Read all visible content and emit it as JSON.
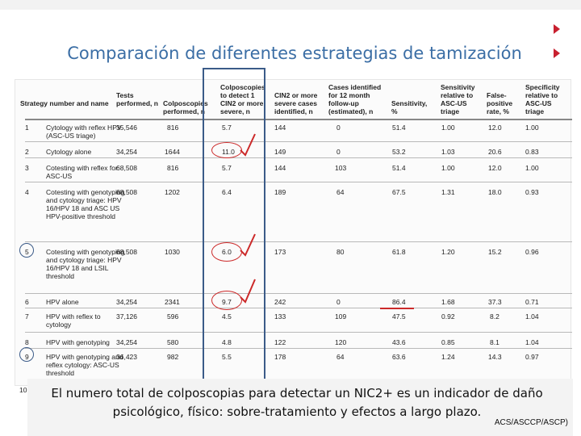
{
  "slide": {
    "title": "Comparación de diferentes estrategias de tamización",
    "caption": "El numero total de colposcopias para detectar un NIC2+ es un indicador de daño psicológico, físico: sobre-tratamiento y efectos a largo plazo.",
    "citation": "ACS/ASCCP/ASCP)"
  },
  "table": {
    "headers": [
      "Strategy number and name",
      "Tests performed, n",
      "Colposcopies performed, n",
      "Colposcopies to detect 1 CIN2 or more severe, n",
      "CIN2 or more severe cases identified, n",
      "Cases identified for 12 month follow-up (estimated), n",
      "Sensitivity, %",
      "Sensitivity relative to ASC-US triage",
      "False-positive rate, %",
      "Specificity relative to ASC-US triage"
    ],
    "rows": [
      {
        "num": "1",
        "name": "Cytology with reflex HPV (ASC-US triage)",
        "tests": "35,546",
        "colpo": "816",
        "per_cin2": "5.7",
        "cin2": "144",
        "followup": "0",
        "sens": "51.4",
        "rel_sens": "1.00",
        "fpr": "12.0",
        "rel_spec": "1.00"
      },
      {
        "num": "2",
        "name": "Cytology alone",
        "tests": "34,254",
        "colpo": "1644",
        "per_cin2": "11.0",
        "cin2": "149",
        "followup": "0",
        "sens": "53.2",
        "rel_sens": "1.03",
        "fpr": "20.6",
        "rel_spec": "0.83"
      },
      {
        "num": "3",
        "name": "Cotesting with reflex for ASC-US",
        "tests": "68,508",
        "colpo": "816",
        "per_cin2": "5.7",
        "cin2": "144",
        "followup": "103",
        "sens": "51.4",
        "rel_sens": "1.00",
        "fpr": "12.0",
        "rel_spec": "1.00"
      },
      {
        "num": "4",
        "name": "Cotesting with genotyping and cytology triage: HPV 16/HPV 18 and ASC US HPV-positive threshold",
        "tests": "68,508",
        "colpo": "1202",
        "per_cin2": "6.4",
        "cin2": "189",
        "followup": "64",
        "sens": "67.5",
        "rel_sens": "1.31",
        "fpr": "18.0",
        "rel_spec": "0.93"
      },
      {
        "num": "5",
        "name": "Cotesting with genotyping and cytology triage: HPV 16/HPV 18 and LSIL threshold",
        "tests": "68,508",
        "colpo": "1030",
        "per_cin2": "6.0",
        "cin2": "173",
        "followup": "80",
        "sens": "61.8",
        "rel_sens": "1.20",
        "fpr": "15.2",
        "rel_spec": "0.96"
      },
      {
        "num": "6",
        "name": "HPV alone",
        "tests": "34,254",
        "colpo": "2341",
        "per_cin2": "9.7",
        "cin2": "242",
        "followup": "0",
        "sens": "86.4",
        "rel_sens": "1.68",
        "fpr": "37.3",
        "rel_spec": "0.71"
      },
      {
        "num": "7",
        "name": "HPV with reflex to cytology",
        "tests": "37,126",
        "colpo": "596",
        "per_cin2": "4.5",
        "cin2": "133",
        "followup": "109",
        "sens": "47.5",
        "rel_sens": "0.92",
        "fpr": "8.2",
        "rel_spec": "1.04"
      },
      {
        "num": "8",
        "name": "HPV with genotyping",
        "tests": "34,254",
        "colpo": "580",
        "per_cin2": "4.8",
        "cin2": "122",
        "followup": "120",
        "sens": "43.6",
        "rel_sens": "0.85",
        "fpr": "8.1",
        "rel_spec": "1.04"
      },
      {
        "num": "9",
        "name": "HPV with genotyping and reflex cytology: ASC-US threshold",
        "tests": "36,423",
        "colpo": "982",
        "per_cin2": "5.5",
        "cin2": "178",
        "followup": "64",
        "sens": "63.6",
        "rel_sens": "1.24",
        "fpr": "14.3",
        "rel_spec": "0.97"
      },
      {
        "num": "10",
        "name": "",
        "tests": "",
        "colpo": "",
        "per_cin2": "",
        "cin2": "",
        "followup": "",
        "sens": "",
        "rel_sens": "",
        "fpr": "",
        "rel_spec": ""
      }
    ]
  },
  "colors": {
    "title": "#3b6ea5",
    "highlight": "#3b5b88",
    "annotation": "#cc2a2a"
  }
}
